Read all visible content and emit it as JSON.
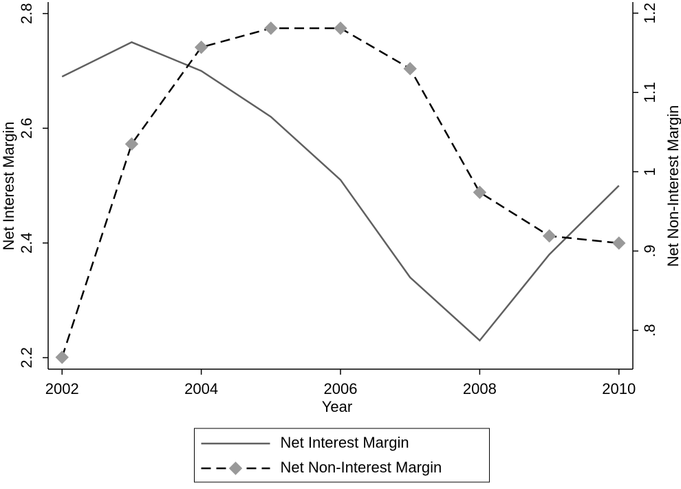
{
  "chart_data": {
    "type": "line",
    "x_label": "Year",
    "y_label": "Net Interest Margin",
    "y2_label": "Net Non-Interest Margin",
    "x": [
      2002,
      2003,
      2004,
      2005,
      2006,
      2007,
      2008,
      2009,
      2010
    ],
    "series": [
      {
        "name": "Net Interest Margin",
        "color": "#606060",
        "line_style": "solid",
        "marker": "none",
        "values": [
          2.69,
          2.75,
          2.7,
          2.62,
          2.51,
          2.34,
          2.23,
          2.38,
          2.5
        ]
      },
      {
        "name": "Net Non-Interest Margin",
        "color": "#000000",
        "marker_color": "#999999",
        "line_style": "dashed",
        "marker": "diamond",
        "axis": "y2",
        "values": [
          0.766,
          1.035,
          1.157,
          1.181,
          1.181,
          1.13,
          0.974,
          0.919,
          0.91
        ]
      }
    ],
    "xlim": [
      2001.8,
      2010.2
    ],
    "xticks": [
      2002,
      2004,
      2006,
      2008,
      2010
    ],
    "ylim": [
      2.18,
      2.82
    ],
    "yticks": [
      2.2,
      2.4,
      2.6,
      2.8
    ],
    "y2lim": [
      0.751,
      1.214
    ],
    "y2ticks": [
      {
        "value": 0.8,
        "label": ".8"
      },
      {
        "value": 0.9,
        "label": ".9"
      },
      1,
      1.1,
      1.2
    ],
    "grid": false,
    "legend": "bottom"
  }
}
